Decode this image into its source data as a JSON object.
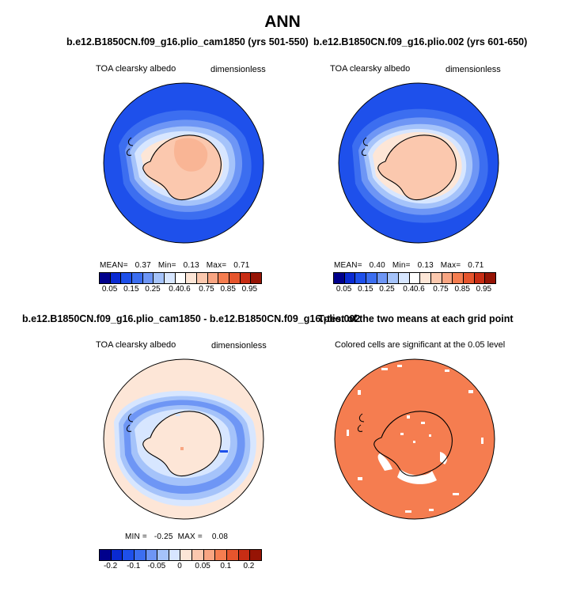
{
  "title": "ANN",
  "panels": [
    {
      "title": "b.e12.B1850CN.f09_g16.plio_cam1850 (yrs 501-550)",
      "left_label": "TOA clearsky albedo",
      "right_label": "dimensionless",
      "stats": {
        "mean_label": "MEAN=",
        "mean": "0.37",
        "min_label": "Min=",
        "min": "0.13",
        "max_label": "Max=",
        "max": "0.71"
      }
    },
    {
      "title": "b.e12.B1850CN.f09_g16.plio.002 (yrs 601-650)",
      "left_label": "TOA clearsky albedo",
      "right_label": "dimensionless",
      "stats": {
        "mean_label": "MEAN=",
        "mean": "0.40",
        "min_label": "Min=",
        "min": "0.13",
        "max_label": "Max=",
        "max": "0.71"
      }
    },
    {
      "title": "b.e12.B1850CN.f09_g16.plio_cam1850 - b.e12.B1850CN.f09_g16.plio.002",
      "left_label": "TOA clearsky albedo",
      "right_label": "dimensionless",
      "stats": {
        "min_label": "MIN =",
        "min": "-0.25",
        "max_label": "MAX =",
        "max": "0.08"
      }
    },
    {
      "title": "T-test of the two means at each grid point",
      "left_label": "Colored cells are significant at the 0.05 level"
    }
  ],
  "colorbar_abs": {
    "ticks": [
      "0.05",
      "0.15",
      "0.25",
      "0.4",
      "0.6",
      "0.75",
      "0.85",
      "0.95"
    ],
    "colors": [
      "#00008c",
      "#0a2ad2",
      "#1e50eb",
      "#3c6ef0",
      "#6e96f5",
      "#a5c3fa",
      "#d7e6ff",
      "#ffffff",
      "#fde6d7",
      "#fbc8ae",
      "#f8a582",
      "#f57d50",
      "#e6552d",
      "#c82d14",
      "#961405"
    ]
  },
  "colorbar_diff": {
    "ticks": [
      "-0.2",
      "-0.1",
      "-0.05",
      "0",
      "0.05",
      "0.1",
      "0.2"
    ],
    "colors": [
      "#00008c",
      "#0a2ad2",
      "#1e50eb",
      "#3c6ef0",
      "#6e96f5",
      "#a5c3fa",
      "#d7e6ff",
      "#fde6d7",
      "#fbc8ae",
      "#f8a582",
      "#f57d50",
      "#e6552d",
      "#c82d14",
      "#961405"
    ]
  },
  "chart_data": [
    {
      "type": "heatmap",
      "title": "b.e12.B1850CN.f09_g16.plio_cam1850 (yrs 501-550)",
      "variable": "TOA clearsky albedo",
      "units": "dimensionless",
      "projection": "south polar stereographic",
      "mean": 0.37,
      "min": 0.13,
      "max": 0.71,
      "contour_levels": [
        0.05,
        0.1,
        0.15,
        0.2,
        0.25,
        0.3,
        0.4,
        0.5,
        0.6,
        0.7,
        0.75,
        0.8,
        0.85,
        0.9,
        0.95
      ]
    },
    {
      "type": "heatmap",
      "title": "b.e12.B1850CN.f09_g16.plio.002 (yrs 601-650)",
      "variable": "TOA clearsky albedo",
      "units": "dimensionless",
      "projection": "south polar stereographic",
      "mean": 0.4,
      "min": 0.13,
      "max": 0.71,
      "contour_levels": [
        0.05,
        0.1,
        0.15,
        0.2,
        0.25,
        0.3,
        0.4,
        0.5,
        0.6,
        0.7,
        0.75,
        0.8,
        0.85,
        0.9,
        0.95
      ]
    },
    {
      "type": "heatmap",
      "title": "b.e12.B1850CN.f09_g16.plio_cam1850 - b.e12.B1850CN.f09_g16.plio.002",
      "variable": "TOA clearsky albedo",
      "units": "dimensionless",
      "projection": "south polar stereographic",
      "min": -0.25,
      "max": 0.08,
      "contour_levels": [
        -0.25,
        -0.2,
        -0.15,
        -0.1,
        -0.075,
        -0.05,
        -0.025,
        0,
        0.025,
        0.05,
        0.075,
        0.1,
        0.15,
        0.2
      ]
    },
    {
      "type": "heatmap",
      "title": "T-test of the two means at each grid point",
      "note": "Colored cells are significant at the 0.05 level",
      "projection": "south polar stereographic",
      "significance_level": 0.05
    }
  ]
}
